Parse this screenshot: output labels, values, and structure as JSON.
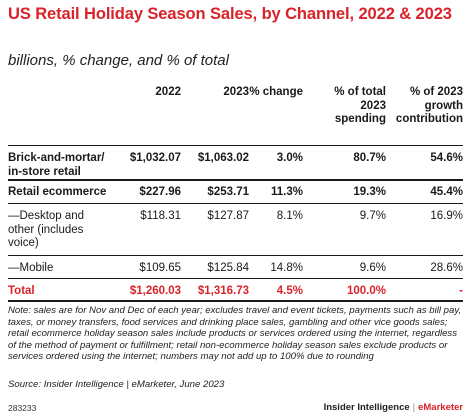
{
  "chart_data": {
    "type": "table",
    "title": "US Retail Holiday Season Sales, by Channel, 2022 & 2023",
    "subtitle": "billions, % change, and % of total",
    "columns": [
      "2022",
      "2023",
      "% change",
      "% of total 2023 spending",
      "% of 2023 growth contribution"
    ],
    "column_lines": [
      [
        "2022"
      ],
      [
        "2023"
      ],
      [
        "% change"
      ],
      [
        "% of total",
        "2023",
        "spending"
      ],
      [
        "% of 2023",
        "growth",
        "contribution"
      ]
    ],
    "rows": [
      {
        "label_lines": [
          "Brick-and-mortar/",
          "in-store retail"
        ],
        "values": [
          "$1,032.07",
          "$1,063.02",
          "3.0%",
          "80.7%",
          "54.6%"
        ],
        "style": "bold"
      },
      {
        "label_lines": [
          "Retail ecommerce"
        ],
        "values": [
          "$227.96",
          "$253.71",
          "11.3%",
          "19.3%",
          "45.4%"
        ],
        "style": "bold"
      },
      {
        "label_lines": [
          "—Desktop and",
          "other (includes",
          "voice)"
        ],
        "values": [
          "$118.31",
          "$127.87",
          "8.1%",
          "9.7%",
          "16.9%"
        ],
        "style": "normal"
      },
      {
        "label_lines": [
          "—Mobile"
        ],
        "values": [
          "$109.65",
          "$125.84",
          "14.8%",
          "9.6%",
          "28.6%"
        ],
        "style": "normal"
      },
      {
        "label_lines": [
          "Total"
        ],
        "values": [
          "$1,260.03",
          "$1,316.73",
          "4.5%",
          "100.0%",
          "-"
        ],
        "style": "total"
      }
    ]
  },
  "note": "Note: sales are for Nov and Dec of each year; excludes travel and event tickets, payments such as bill pay, taxes, or money transfers, food services and drinking place sales, gambling and other vice goods sales; retail ecommerce holiday season sales include products or services ordered using the internet, regardless of the method of payment or fulfillment; retail non-ecommerce holiday season sales exclude products or services ordered using the internet; numbers may not add up to 100% due to rounding",
  "source": "Source: Insider Intelligence | eMarketer, June 2023",
  "footer": {
    "chart_id": "283233",
    "brand_a": "Insider Intelligence",
    "separator": "|",
    "brand_b": "eMarketer"
  }
}
